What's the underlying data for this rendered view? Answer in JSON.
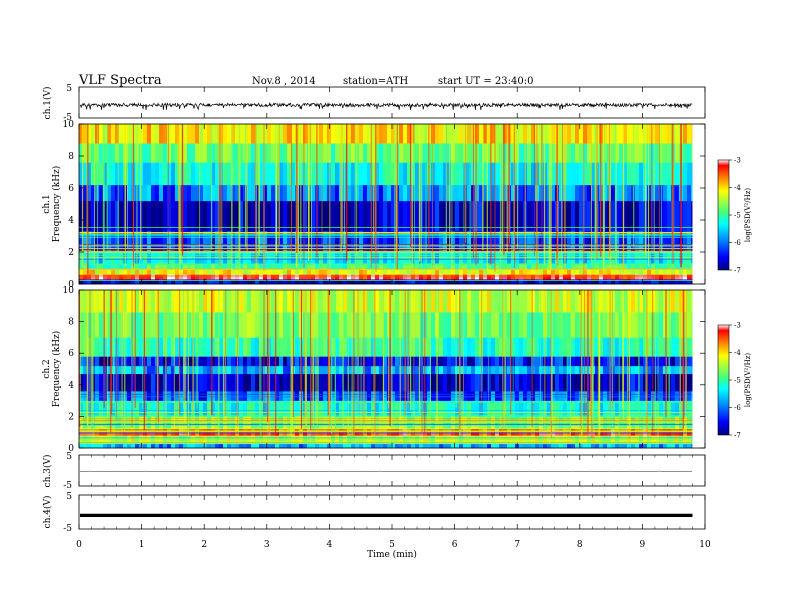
{
  "header": {
    "title": "VLF Spectra",
    "date": "Nov.8 , 2014",
    "station": "station=ATH",
    "start": "start  UT =  23:40:0"
  },
  "chart_data": [
    {
      "type": "line",
      "panel": "ch1-waveform",
      "ylabel": "ch.1(V)",
      "ylim": [
        -5,
        5
      ],
      "yticks": [
        "5",
        "-5"
      ],
      "xlim": [
        0,
        10
      ],
      "style": "dense noisy black trace, mean about -0.8 V, amplitude about ±0.6 V with spikes to -1.8 V",
      "baseline": -0.8
    },
    {
      "type": "heatmap",
      "panel": "ch1-spectrogram",
      "ylabel": "ch.1\nFrequency (kHz)",
      "ylim": [
        0,
        10
      ],
      "yticks": [
        "0",
        "2",
        "4",
        "6",
        "8",
        "10"
      ],
      "xlim": [
        0,
        10
      ],
      "colorbar": {
        "label": "log(PSD(V²/Hz)",
        "range": [
          -7,
          -3
        ],
        "ticks": [
          "-3",
          "-4",
          "-5",
          "-6",
          "-7"
        ],
        "colormap": [
          "#00007f",
          "#0000ff",
          "#00a0ff",
          "#00ffff",
          "#40ff80",
          "#a0ff40",
          "#ffff00",
          "#ff8000",
          "#ff0000",
          "#ffffff"
        ]
      },
      "bands": [
        {
          "from": 0.0,
          "to": 0.3,
          "level": -6.8
        },
        {
          "from": 0.3,
          "to": 0.6,
          "level": -3.4
        },
        {
          "from": 0.6,
          "to": 0.9,
          "level": -4.4
        },
        {
          "from": 0.9,
          "to": 1.3,
          "level": -5.3
        },
        {
          "from": 1.3,
          "to": 2.0,
          "level": -5.7
        },
        {
          "from": 2.0,
          "to": 3.3,
          "level": -6.4
        },
        {
          "from": 3.3,
          "to": 5.2,
          "level": -6.8
        },
        {
          "from": 5.2,
          "to": 6.2,
          "level": -6.2
        },
        {
          "from": 6.2,
          "to": 7.6,
          "level": -5.6
        },
        {
          "from": 7.6,
          "to": 8.8,
          "level": -5.1
        },
        {
          "from": 8.8,
          "to": 10.0,
          "level": -4.3
        }
      ],
      "data_xmax": 9.8
    },
    {
      "type": "heatmap",
      "panel": "ch2-spectrogram",
      "ylabel": "ch.2\nFrequency (kHz)",
      "ylim": [
        0,
        10
      ],
      "yticks": [
        "0",
        "2",
        "4",
        "6",
        "8",
        "10"
      ],
      "xlim": [
        0,
        10
      ],
      "colorbar": {
        "label": "log(PSD(V²/Hz)",
        "range": [
          -7,
          -3
        ],
        "ticks": [
          "-3",
          "-4",
          "-5",
          "-6",
          "-7"
        ],
        "colormap": [
          "#00007f",
          "#0000ff",
          "#00a0ff",
          "#00ffff",
          "#40ff80",
          "#a0ff40",
          "#ffff00",
          "#ff8000",
          "#ff0000",
          "#ffffff"
        ]
      },
      "bands": [
        {
          "from": 0.0,
          "to": 0.3,
          "level": -6.0
        },
        {
          "from": 0.3,
          "to": 0.8,
          "level": -4.6
        },
        {
          "from": 0.8,
          "to": 1.2,
          "level": -3.6
        },
        {
          "from": 1.2,
          "to": 2.0,
          "level": -4.9
        },
        {
          "from": 2.0,
          "to": 3.0,
          "level": -5.6
        },
        {
          "from": 3.0,
          "to": 3.6,
          "level": -6.3
        },
        {
          "from": 3.6,
          "to": 4.7,
          "level": -6.8
        },
        {
          "from": 4.7,
          "to": 5.2,
          "level": -6.0
        },
        {
          "from": 5.2,
          "to": 5.8,
          "level": -6.6
        },
        {
          "from": 5.8,
          "to": 7.0,
          "level": -5.4
        },
        {
          "from": 7.0,
          "to": 8.6,
          "level": -5.0
        },
        {
          "from": 8.6,
          "to": 10.0,
          "level": -4.6
        }
      ],
      "data_xmax": 9.8
    },
    {
      "type": "line",
      "panel": "ch3-waveform",
      "ylabel": "ch.3(V)",
      "ylim": [
        -5,
        5
      ],
      "yticks": [
        "5",
        "-5"
      ],
      "xlim": [
        0,
        10
      ],
      "style": "thin near-flat trace",
      "baseline": -0.3
    },
    {
      "type": "line",
      "panel": "ch4-waveform",
      "ylabel": "ch.4(V)",
      "ylim": [
        -5,
        5
      ],
      "yticks": [
        "5",
        "-5"
      ],
      "xlim": [
        0,
        10
      ],
      "style": "thick flat black trace",
      "baseline": -1.0
    }
  ],
  "xaxis": {
    "label": "Time (min)",
    "ticks": [
      "0",
      "1",
      "2",
      "3",
      "4",
      "5",
      "6",
      "7",
      "8",
      "9",
      "10"
    ],
    "range": [
      0,
      10
    ]
  }
}
